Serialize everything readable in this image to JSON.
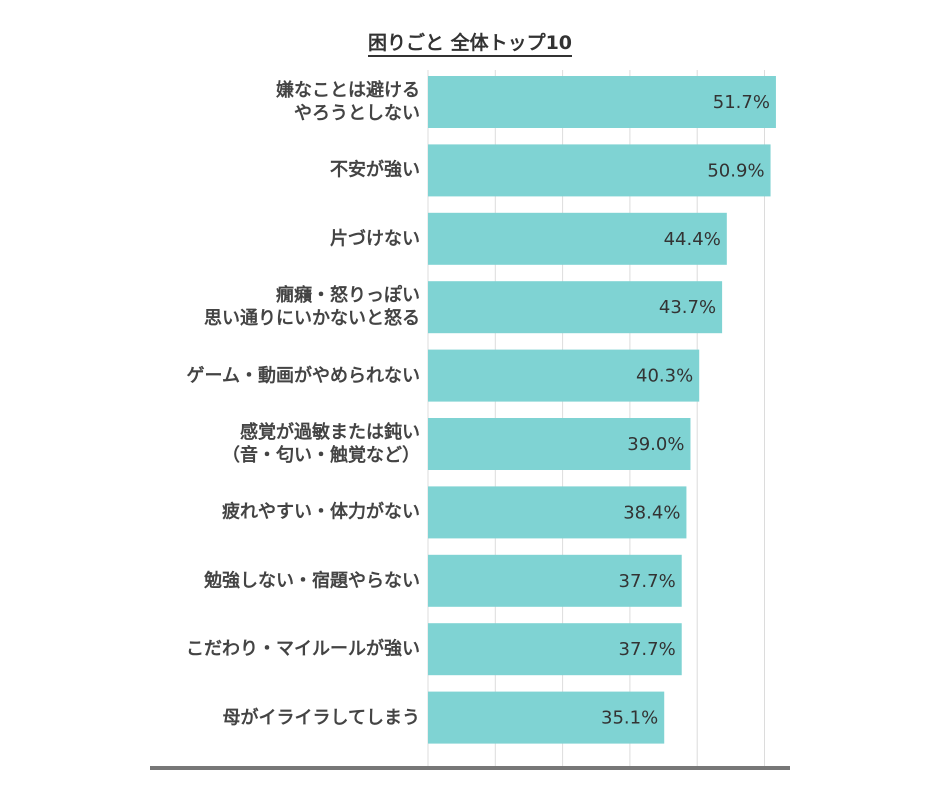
{
  "chart_data": {
    "type": "hbar",
    "title": "困りごと 全体トップ10",
    "categories": [
      "嫌なことは避ける\nやろうとしない",
      "不安が強い",
      "片づけない",
      "癇癪・怒りっぽい\n思い通りにいかないと怒る",
      "ゲーム・動画がやめられない",
      "感覚が過敏または鈍い\n（音・匂い・触覚など）",
      "疲れやすい・体力がない",
      "勉強しない・宿題やらない",
      "こだわり・マイルールが強い",
      "母がイライラしてしまう"
    ],
    "values": [
      51.7,
      50.9,
      44.4,
      43.7,
      40.3,
      39.0,
      38.4,
      37.7,
      37.7,
      35.1
    ],
    "value_labels": [
      "51.7%",
      "50.9%",
      "44.4%",
      "43.7%",
      "40.3%",
      "39.0%",
      "38.4%",
      "37.7%",
      "37.7%",
      "35.1%"
    ],
    "color": "#7fd3d3",
    "xlim": [
      0,
      54
    ],
    "xticks": [
      0,
      10,
      20,
      30,
      40,
      50
    ],
    "grid": true
  }
}
